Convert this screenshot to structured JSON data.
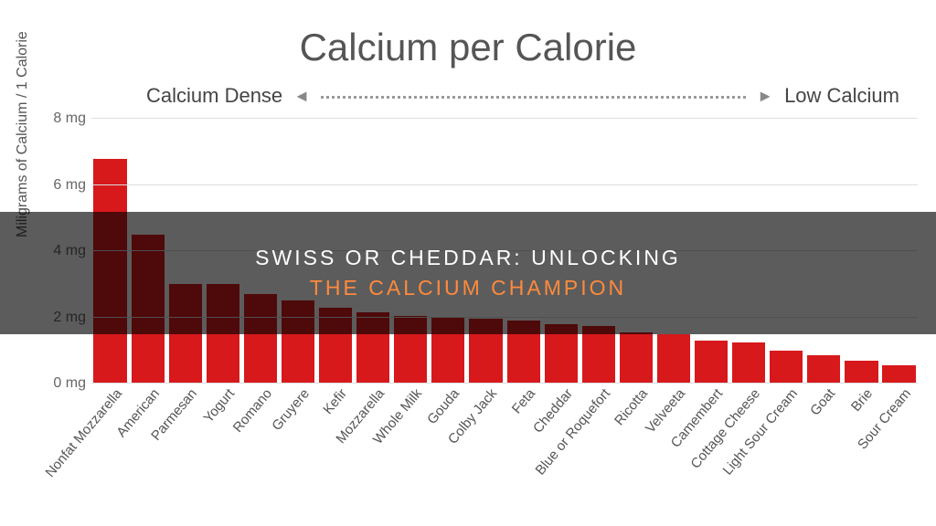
{
  "title": "Calcium per Calorie",
  "title_fontsize": 42,
  "title_color": "#555555",
  "subhead_left": "Calcium Dense",
  "subhead_right": "Low Calcium",
  "subhead_fontsize": 22,
  "yaxis_title": "Miligrams of Calcium / 1 Calorie",
  "yaxis_title_fontsize": 16,
  "ytick_fontsize": 16,
  "xlabel_fontsize": 15,
  "chart": {
    "type": "bar",
    "y_min": 0,
    "y_max": 8,
    "y_tick_step": 2,
    "y_tick_unit": " mg",
    "plot_background": "#ffffff",
    "grid_color": "#dddddd",
    "bar_color": "#d7191c",
    "bar_width_pct": 88,
    "categories": [
      "Nonfat Mozzarella",
      "American",
      "Parmesan",
      "Yogurt",
      "Romano",
      "Gruyere",
      "Kefir",
      "Mozzarella",
      "Whole Milk",
      "Gouda",
      "Colby Jack",
      "Feta",
      "Cheddar",
      "Blue or Roquefort",
      "Ricotta",
      "Velveeta",
      "Camembert",
      "Cottage Cheese",
      "Light Sour Cream",
      "Goat",
      "Brie",
      "Sour Cream"
    ],
    "values": [
      6.8,
      4.5,
      3.0,
      3.0,
      2.7,
      2.5,
      2.3,
      2.15,
      2.05,
      2.0,
      1.95,
      1.9,
      1.8,
      1.75,
      1.55,
      1.5,
      1.3,
      1.25,
      1.0,
      0.85,
      0.7,
      0.55
    ]
  },
  "overlay": {
    "line1": "SWISS OR CHEDDAR: UNLOCKING",
    "line2": "THE CALCIUM CHAMPION",
    "line_fontsize": 23,
    "line1_color": "#ffffff",
    "line2_color": "#ff8a3c",
    "band_bg": "rgba(0,0,0,0.64)"
  }
}
